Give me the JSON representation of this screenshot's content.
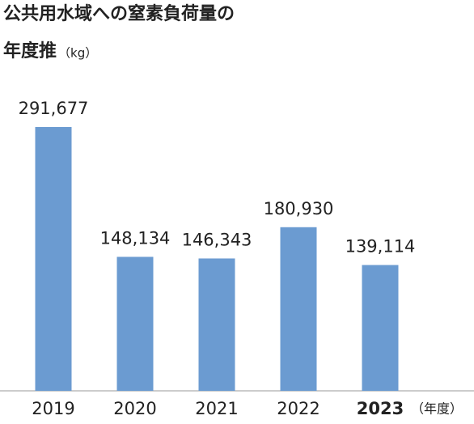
{
  "chart_data": {
    "type": "bar",
    "title_lines": [
      "公共用水域への窒素負荷量の",
      "年度推"
    ],
    "unit": "（kg）",
    "x_label": "（年度）",
    "categories": [
      "2019",
      "2020",
      "2021",
      "2022",
      "2023"
    ],
    "values": [
      291677,
      148134,
      146343,
      180930,
      139114
    ],
    "value_labels": [
      "291,677",
      "148,134",
      "146,343",
      "180,930",
      "139,114"
    ],
    "color": "#6b9bd1"
  }
}
